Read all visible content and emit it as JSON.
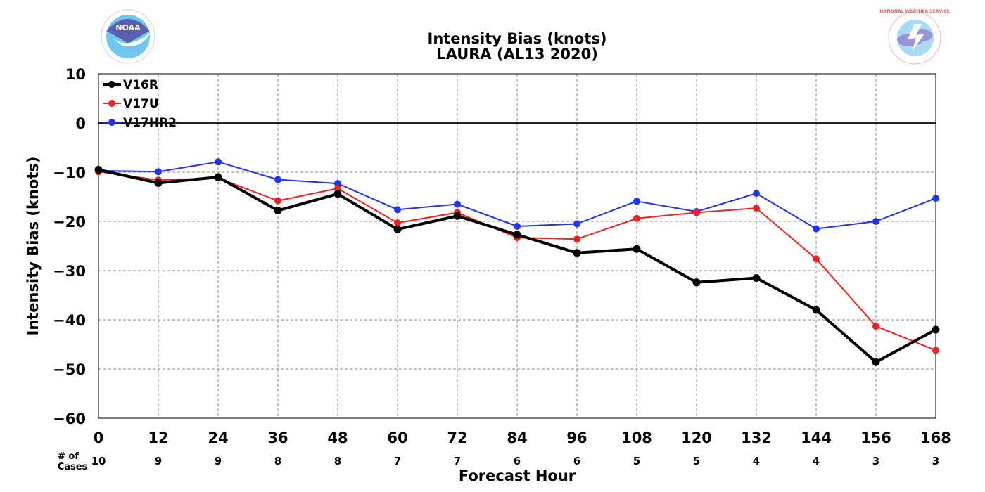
{
  "chart_data": {
    "type": "line",
    "title": "Intensity Bias (knots)",
    "subtitle": "LAURA (AL13 2020)",
    "xlabel": "Forecast Hour",
    "ylabel": "Intensity Bias (knots)",
    "x": [
      0,
      12,
      24,
      36,
      48,
      60,
      72,
      84,
      96,
      108,
      120,
      132,
      144,
      156,
      168
    ],
    "xlim": [
      0,
      168
    ],
    "ylim": [
      -60,
      10
    ],
    "yticks": [
      10,
      0,
      -10,
      -20,
      -30,
      -40,
      -50,
      -60
    ],
    "grid": true,
    "zero_line": true,
    "legend_position": "top-left",
    "cases_label": "# of\nCases",
    "cases": [
      10,
      9,
      9,
      8,
      8,
      7,
      7,
      6,
      6,
      5,
      5,
      4,
      4,
      3,
      3
    ],
    "series": [
      {
        "name": "V16R",
        "color": "#000000",
        "line_width": "thick",
        "values": [
          -9.5,
          -12.2,
          -11.0,
          -17.8,
          -14.4,
          -21.6,
          -18.9,
          -22.7,
          -26.4,
          -25.6,
          -32.4,
          -31.5,
          -38.0,
          -48.6,
          -42.0
        ]
      },
      {
        "name": "V17U",
        "color": "#ee2222",
        "line_width": "thin",
        "values": [
          -9.9,
          -11.6,
          -11.2,
          -15.8,
          -13.3,
          -20.3,
          -18.2,
          -23.3,
          -23.6,
          -19.4,
          -18.2,
          -17.3,
          -27.6,
          -41.3,
          -46.2
        ]
      },
      {
        "name": "V17HR2",
        "color": "#2233ee",
        "line_width": "thin",
        "values": [
          -9.7,
          -9.9,
          -7.9,
          -11.5,
          -12.3,
          -17.6,
          -16.5,
          -21.0,
          -20.5,
          -15.9,
          -18.0,
          -14.3,
          -21.5,
          -20.0,
          -15.3
        ]
      }
    ],
    "logos": {
      "left": {
        "name": "noaa-logo",
        "text": "NOAA"
      },
      "right": {
        "name": "nws-logo",
        "text": "NATIONAL WEATHER SERVICE"
      }
    }
  }
}
